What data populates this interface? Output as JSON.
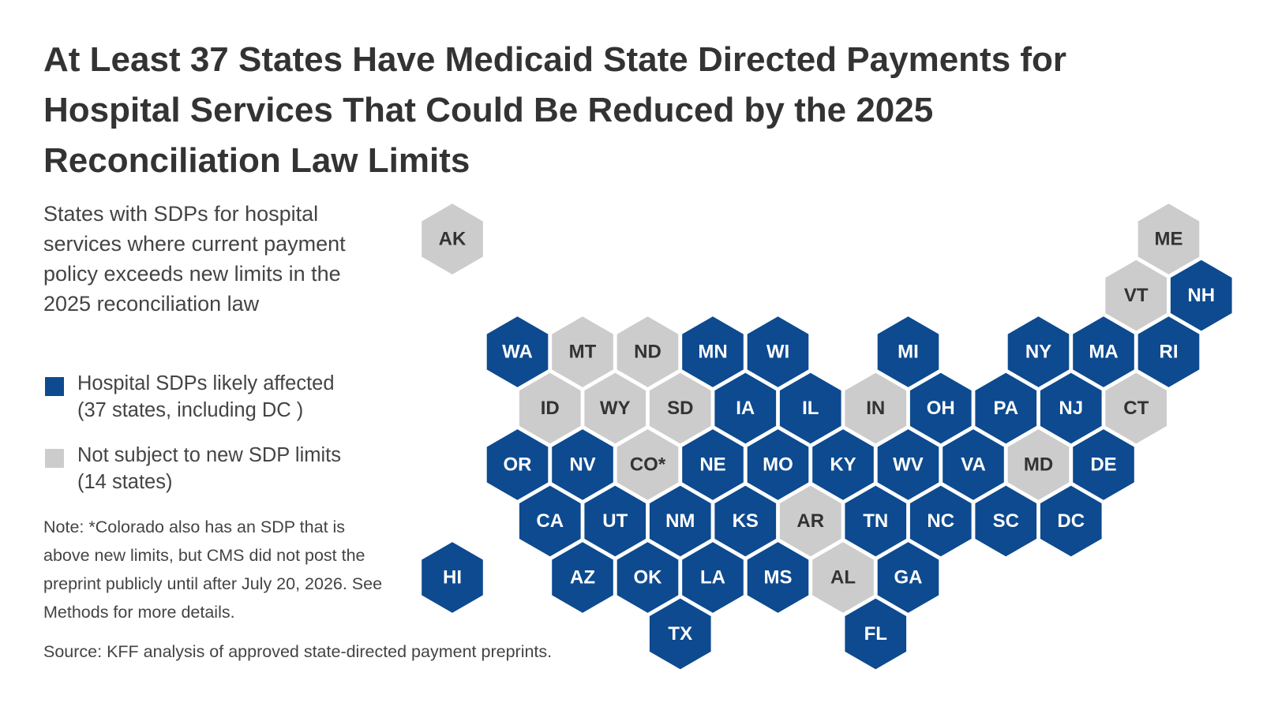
{
  "title": "At Least 37 States Have Medicaid State Directed Payments for Hospital Services That Could Be Reduced by the 2025 Reconciliation Law Limits",
  "subtitle": "States with SDPs for hospital services where current payment policy exceeds new limits in the 2025 reconciliation law",
  "legend": {
    "affected": {
      "label": "Hospital SDPs likely affected",
      "count": "(37 states, including DC )",
      "color": "#0d4a8f"
    },
    "not_subject": {
      "label": "Not subject to new SDP limits",
      "count": "(14 states)",
      "color": "#cccccc"
    }
  },
  "note": "Note: *Colorado also has an SDP that is above new limits, but CMS did not post the preprint publicly until after July 20, 2026. See Methods for more details.",
  "source": "Source: KFF analysis of approved state-directed payment preprints.",
  "colors": {
    "affected_text": "#ffffff",
    "not_subject_text": "#333333"
  },
  "chart_data": {
    "type": "tile map",
    "categories": [
      "affected",
      "not_subject"
    ],
    "states": [
      {
        "label": "AK",
        "category": "not_subject",
        "row": 0,
        "col": 0
      },
      {
        "label": "ME",
        "category": "not_subject",
        "row": 0,
        "col": 11
      },
      {
        "label": "VT",
        "category": "not_subject",
        "row": 1,
        "col": 10
      },
      {
        "label": "NH",
        "category": "affected",
        "row": 1,
        "col": 11
      },
      {
        "label": "WA",
        "category": "affected",
        "row": 2,
        "col": 1
      },
      {
        "label": "MT",
        "category": "not_subject",
        "row": 2,
        "col": 2
      },
      {
        "label": "ND",
        "category": "not_subject",
        "row": 2,
        "col": 3
      },
      {
        "label": "MN",
        "category": "affected",
        "row": 2,
        "col": 4
      },
      {
        "label": "WI",
        "category": "affected",
        "row": 2,
        "col": 5
      },
      {
        "label": "MI",
        "category": "affected",
        "row": 2,
        "col": 7
      },
      {
        "label": "NY",
        "category": "affected",
        "row": 2,
        "col": 9
      },
      {
        "label": "MA",
        "category": "affected",
        "row": 2,
        "col": 10
      },
      {
        "label": "RI",
        "category": "affected",
        "row": 2,
        "col": 11
      },
      {
        "label": "ID",
        "category": "not_subject",
        "row": 3,
        "col": 1
      },
      {
        "label": "WY",
        "category": "not_subject",
        "row": 3,
        "col": 2
      },
      {
        "label": "SD",
        "category": "not_subject",
        "row": 3,
        "col": 3
      },
      {
        "label": "IA",
        "category": "affected",
        "row": 3,
        "col": 4
      },
      {
        "label": "IL",
        "category": "affected",
        "row": 3,
        "col": 5
      },
      {
        "label": "IN",
        "category": "not_subject",
        "row": 3,
        "col": 6
      },
      {
        "label": "OH",
        "category": "affected",
        "row": 3,
        "col": 7
      },
      {
        "label": "PA",
        "category": "affected",
        "row": 3,
        "col": 8
      },
      {
        "label": "NJ",
        "category": "affected",
        "row": 3,
        "col": 9
      },
      {
        "label": "CT",
        "category": "not_subject",
        "row": 3,
        "col": 10
      },
      {
        "label": "OR",
        "category": "affected",
        "row": 4,
        "col": 1
      },
      {
        "label": "NV",
        "category": "affected",
        "row": 4,
        "col": 2
      },
      {
        "label": "CO*",
        "category": "not_subject",
        "row": 4,
        "col": 3
      },
      {
        "label": "NE",
        "category": "affected",
        "row": 4,
        "col": 4
      },
      {
        "label": "MO",
        "category": "affected",
        "row": 4,
        "col": 5
      },
      {
        "label": "KY",
        "category": "affected",
        "row": 4,
        "col": 6
      },
      {
        "label": "WV",
        "category": "affected",
        "row": 4,
        "col": 7
      },
      {
        "label": "VA",
        "category": "affected",
        "row": 4,
        "col": 8
      },
      {
        "label": "MD",
        "category": "not_subject",
        "row": 4,
        "col": 9
      },
      {
        "label": "DE",
        "category": "affected",
        "row": 4,
        "col": 10
      },
      {
        "label": "CA",
        "category": "affected",
        "row": 5,
        "col": 1
      },
      {
        "label": "UT",
        "category": "affected",
        "row": 5,
        "col": 2
      },
      {
        "label": "NM",
        "category": "affected",
        "row": 5,
        "col": 3
      },
      {
        "label": "KS",
        "category": "affected",
        "row": 5,
        "col": 4
      },
      {
        "label": "AR",
        "category": "not_subject",
        "row": 5,
        "col": 5
      },
      {
        "label": "TN",
        "category": "affected",
        "row": 5,
        "col": 6
      },
      {
        "label": "NC",
        "category": "affected",
        "row": 5,
        "col": 7
      },
      {
        "label": "SC",
        "category": "affected",
        "row": 5,
        "col": 8
      },
      {
        "label": "DC",
        "category": "affected",
        "row": 5,
        "col": 9
      },
      {
        "label": "HI",
        "category": "affected",
        "row": 6,
        "col": 0
      },
      {
        "label": "AZ",
        "category": "affected",
        "row": 6,
        "col": 2
      },
      {
        "label": "OK",
        "category": "affected",
        "row": 6,
        "col": 3
      },
      {
        "label": "LA",
        "category": "affected",
        "row": 6,
        "col": 4
      },
      {
        "label": "MS",
        "category": "affected",
        "row": 6,
        "col": 5
      },
      {
        "label": "AL",
        "category": "not_subject",
        "row": 6,
        "col": 6
      },
      {
        "label": "GA",
        "category": "affected",
        "row": 6,
        "col": 7
      },
      {
        "label": "TX",
        "category": "affected",
        "row": 7,
        "col": 3
      },
      {
        "label": "FL",
        "category": "affected",
        "row": 7,
        "col": 6
      }
    ]
  }
}
